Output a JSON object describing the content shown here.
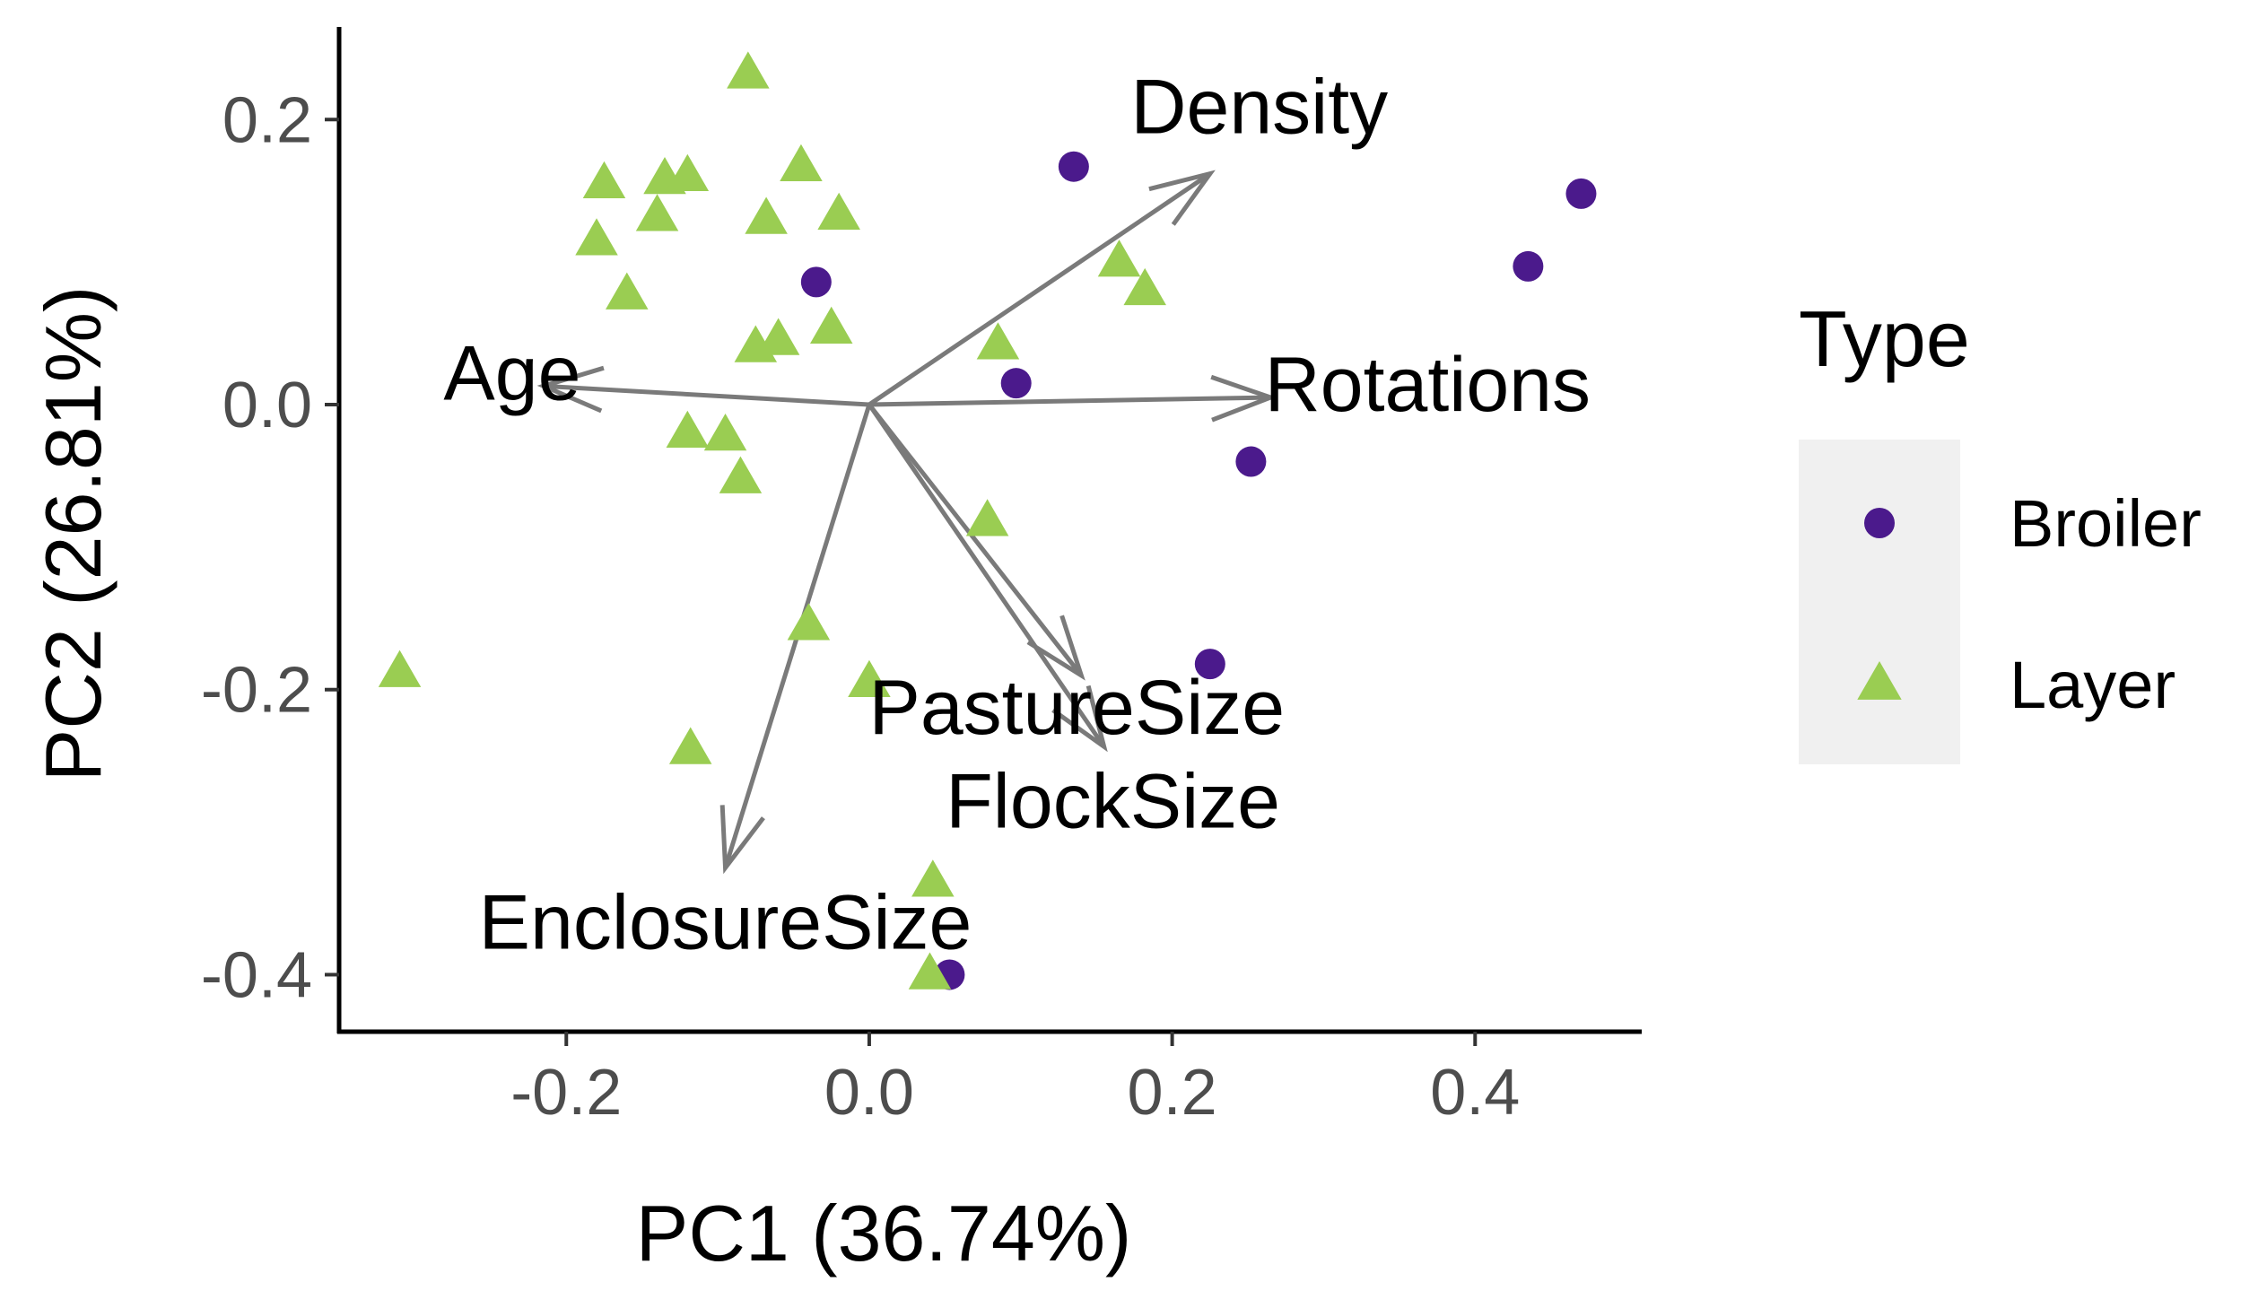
{
  "chart_data": {
    "type": "scatter",
    "subtype": "pca-biplot",
    "xlabel": "PC1 (36.74%)",
    "ylabel": "PC2 (26.81%)",
    "xlim": [
      -0.35,
      0.51
    ],
    "ylim": [
      -0.44,
      0.265
    ],
    "xticks": [
      -0.2,
      0.0,
      0.2,
      0.4
    ],
    "xtick_labels": [
      "-0.2",
      "0.0",
      "0.2",
      "0.4"
    ],
    "yticks": [
      0.2,
      0.0,
      -0.2,
      -0.4
    ],
    "ytick_labels": [
      "0.2",
      "0.0",
      "-0.2",
      "-0.4"
    ],
    "grid": false,
    "legend": {
      "title": "Type",
      "position": "right",
      "entries": [
        {
          "label": "Broiler",
          "shape": "circle",
          "color": "#4B1A8C"
        },
        {
          "label": "Layer",
          "shape": "triangle",
          "color": "#9ACD52"
        }
      ]
    },
    "series": [
      {
        "name": "Broiler",
        "shape": "circle",
        "color": "#4B1A8C",
        "points": [
          [
            0.135,
            0.167
          ],
          [
            0.47,
            0.148
          ],
          [
            0.435,
            0.097
          ],
          [
            -0.035,
            0.086
          ],
          [
            0.097,
            0.015
          ],
          [
            0.252,
            -0.04
          ],
          [
            0.225,
            -0.182
          ],
          [
            0.053,
            -0.4
          ]
        ]
      },
      {
        "name": "Layer",
        "shape": "triangle",
        "color": "#9ACD52",
        "points": [
          [
            -0.08,
            0.232
          ],
          [
            -0.045,
            0.167
          ],
          [
            -0.175,
            0.155
          ],
          [
            -0.135,
            0.158
          ],
          [
            -0.12,
            0.16
          ],
          [
            -0.14,
            0.132
          ],
          [
            -0.068,
            0.13
          ],
          [
            -0.02,
            0.133
          ],
          [
            -0.18,
            0.115
          ],
          [
            -0.16,
            0.077
          ],
          [
            0.165,
            0.1
          ],
          [
            0.182,
            0.08
          ],
          [
            -0.025,
            0.053
          ],
          [
            -0.06,
            0.045
          ],
          [
            -0.075,
            0.04
          ],
          [
            0.085,
            0.042
          ],
          [
            -0.12,
            -0.02
          ],
          [
            -0.095,
            -0.022
          ],
          [
            -0.085,
            -0.052
          ],
          [
            0.078,
            -0.082
          ],
          [
            -0.04,
            -0.155
          ],
          [
            0.0,
            -0.195
          ],
          [
            -0.31,
            -0.188
          ],
          [
            -0.118,
            -0.242
          ],
          [
            0.042,
            -0.335
          ],
          [
            0.04,
            -0.4
          ]
        ]
      }
    ],
    "vectors": [
      {
        "name": "Density",
        "x": 0.225,
        "y": 0.162
      },
      {
        "name": "Age",
        "x": -0.215,
        "y": 0.013
      },
      {
        "name": "Rotations",
        "x": 0.265,
        "y": 0.005
      },
      {
        "name": "PastureSize",
        "x": 0.14,
        "y": -0.19
      },
      {
        "name": "FlockSize",
        "x": 0.155,
        "y": -0.24
      },
      {
        "name": "EnclosureSize",
        "x": -0.095,
        "y": -0.325
      }
    ]
  }
}
